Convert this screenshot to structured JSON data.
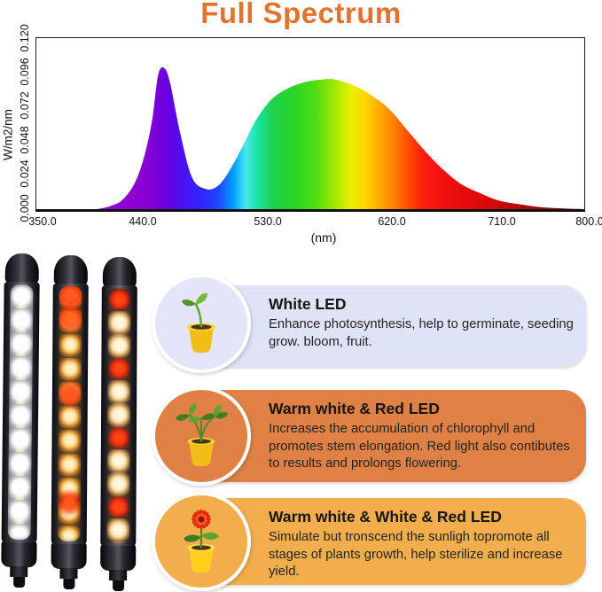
{
  "title": "Full Spectrum",
  "colors": {
    "title_accent": "#e1732f",
    "card_white_led_bg": "#dee3f6",
    "card_warm_red_bg": "#df8145",
    "card_mix_bg": "#f2ae4d"
  },
  "chart_data": {
    "type": "area",
    "title": "Full Spectrum",
    "xlabel": "(nm)",
    "ylabel": "W/m2/nm",
    "xlim": [
      350,
      800
    ],
    "ylim": [
      0,
      0.12
    ],
    "xtick_labels": [
      "350.0",
      "440.0",
      "530.0",
      "620.0",
      "710.0",
      "800.0"
    ],
    "ytick_labels": [
      "0.000",
      "0.024",
      "0.048",
      "0.072",
      "0.096",
      "0.120"
    ],
    "grid": false,
    "legend": null,
    "fill": "spectral rainbow gradient, violet at 400nm through blue, cyan, green, yellow, orange to dark red at 800nm",
    "x": [
      400,
      410,
      420,
      430,
      438,
      445,
      450,
      455,
      460,
      468,
      478,
      490,
      500,
      510,
      520,
      530,
      542,
      555,
      570,
      585,
      595,
      610,
      625,
      640,
      655,
      670,
      685,
      700,
      715,
      730,
      750,
      770,
      800
    ],
    "y": [
      0.0,
      0.002,
      0.006,
      0.017,
      0.035,
      0.062,
      0.094,
      0.099,
      0.088,
      0.054,
      0.022,
      0.014,
      0.017,
      0.029,
      0.045,
      0.062,
      0.076,
      0.084,
      0.089,
      0.091,
      0.091,
      0.087,
      0.08,
      0.07,
      0.055,
      0.04,
      0.027,
      0.017,
      0.011,
      0.006,
      0.003,
      0.001,
      0.0
    ]
  },
  "tubes": [
    {
      "label": "white LED tube",
      "leds": "white"
    },
    {
      "label": "warm white and red LED tube",
      "leds": "warm white, red"
    },
    {
      "label": "warm white, white and red LED tube",
      "leds": "warm white, white, red"
    }
  ],
  "cards": [
    {
      "title": "White LED",
      "body": "Enhance photosynthesis, help to germinate, seeding grow. bloom, fruit.",
      "icon": "seedling-pot"
    },
    {
      "title": "Warm white & Red LED",
      "body": "Increases the accumulation of chlorophyll and promotes stem elongation. Red light also contibutes to results and prolongs flowering.",
      "icon": "plant-pot"
    },
    {
      "title": "Warm white & White & Red LED",
      "body": "Simulate but tronscend the sunligh topromote all stages of plants growth, help sterilize and increase yield.",
      "icon": "flower-pot"
    }
  ]
}
